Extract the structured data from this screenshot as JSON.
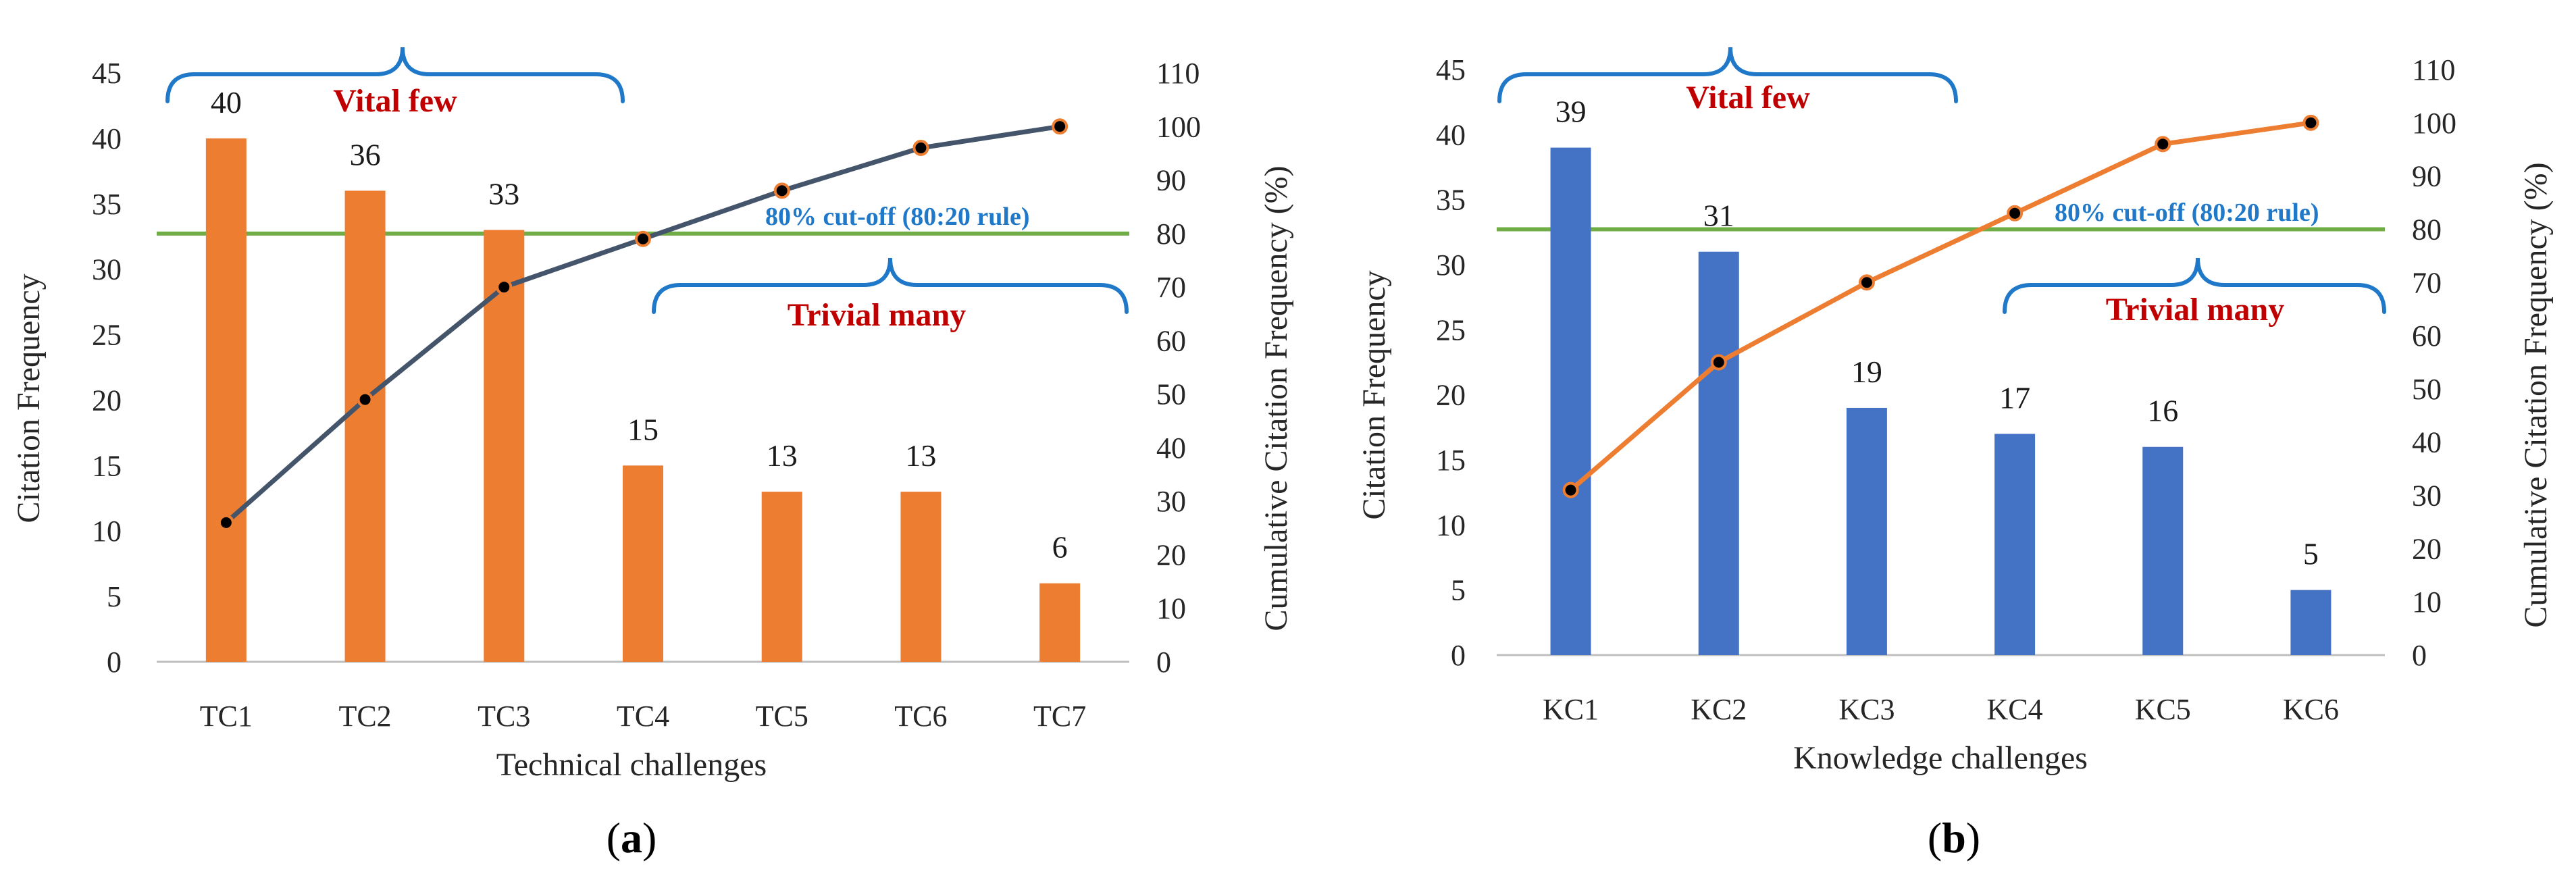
{
  "chart_data": [
    {
      "type": "bar",
      "panel_label": "a",
      "xlabel": "Technical challenges",
      "ylabel": "Citation Frequency",
      "y2label": "Cumulative Citation Frequency (%)",
      "ylim": [
        0,
        45
      ],
      "y2lim": [
        0,
        110
      ],
      "categories": [
        "TC1",
        "TC2",
        "TC3",
        "TC4",
        "TC5",
        "TC6",
        "TC7"
      ],
      "series": [
        {
          "name": "Citation Frequency",
          "type": "bar",
          "axis": "left",
          "values": [
            40,
            36,
            33,
            15,
            13,
            13,
            6
          ]
        },
        {
          "name": "Cumulative Citation Frequency (%)",
          "type": "line",
          "axis": "right",
          "values": [
            26,
            49,
            70,
            79,
            88,
            96,
            100
          ]
        }
      ],
      "data_labels": [
        "40",
        "36",
        "33",
        "15",
        "13",
        "13",
        "6"
      ],
      "y_ticks": [
        "0",
        "5",
        "10",
        "15",
        "20",
        "25",
        "30",
        "35",
        "40",
        "45"
      ],
      "y2_ticks": [
        "0",
        "10",
        "20",
        "30",
        "40",
        "50",
        "60",
        "70",
        "80",
        "90",
        "100",
        "110"
      ],
      "cutoff_value": 80,
      "annotations": {
        "vital_few": "Vital few",
        "trivial_many": "Trivial many",
        "cutoff": "80% cut-off (80:20 rule)"
      },
      "colors": {
        "bar": "#ed7d31",
        "line": "#44546a",
        "marker": "#000000",
        "cutoff": "#70ad47",
        "brace": "#1f78c8",
        "anno_red": "#c00000"
      }
    },
    {
      "type": "bar",
      "panel_label": "b",
      "xlabel": "Knowledge challenges",
      "ylabel": "Citation Frequency",
      "y2label": "Cumulative Citation Frequency (%)",
      "ylim": [
        0,
        45
      ],
      "y2lim": [
        0,
        110
      ],
      "categories": [
        "KC1",
        "KC2",
        "KC3",
        "KC4",
        "KC5",
        "KC6"
      ],
      "series": [
        {
          "name": "Citation Frequency",
          "type": "bar",
          "axis": "left",
          "values": [
            39,
            31,
            19,
            17,
            16,
            5
          ]
        },
        {
          "name": "Cumulative Citation Frequency (%)",
          "type": "line",
          "axis": "right",
          "values": [
            31,
            55,
            70,
            83,
            96,
            100
          ]
        }
      ],
      "data_labels": [
        "39",
        "31",
        "19",
        "17",
        "16",
        "5"
      ],
      "y_ticks": [
        "0",
        "5",
        "10",
        "15",
        "20",
        "25",
        "30",
        "35",
        "40",
        "45"
      ],
      "y2_ticks": [
        "0",
        "10",
        "20",
        "30",
        "40",
        "50",
        "60",
        "70",
        "80",
        "90",
        "100",
        "110"
      ],
      "cutoff_value": 80,
      "annotations": {
        "vital_few": "Vital few",
        "trivial_many": "Trivial many",
        "cutoff": "80% cut-off (80:20 rule)"
      },
      "colors": {
        "bar": "#4472c4",
        "line": "#ed7d31",
        "marker": "#000000",
        "cutoff": "#70ad47",
        "brace": "#1f78c8",
        "anno_red": "#c00000"
      }
    }
  ]
}
